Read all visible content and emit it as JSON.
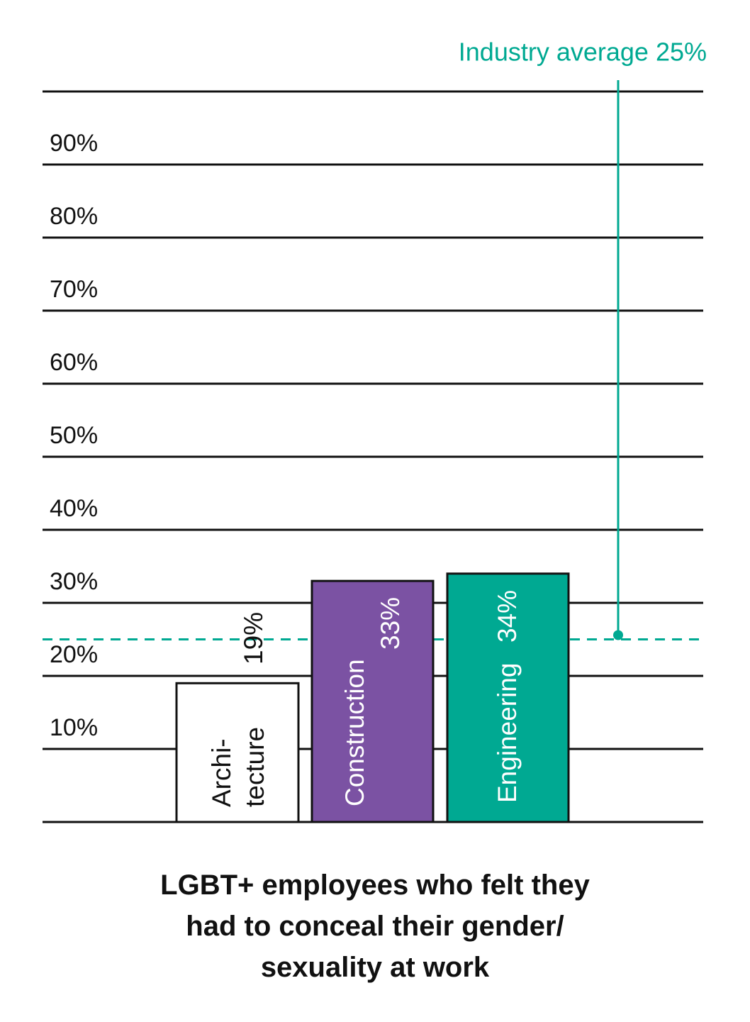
{
  "chart_data": {
    "type": "bar",
    "title": "LGBT+ employees who felt they\nhad to conceal their gender/\nsexuality at work",
    "categories": [
      "Archi-\ntecture",
      "Construction",
      "Engineering"
    ],
    "values": [
      19,
      33,
      34
    ],
    "value_labels": [
      "19%",
      "33%",
      "34%"
    ],
    "colors": [
      "#ffffff",
      "#7b52a3",
      "#00a992"
    ],
    "ylim": [
      0,
      100
    ],
    "yticks": [
      {
        "value": 10,
        "label": "10%"
      },
      {
        "value": 20,
        "label": "20%"
      },
      {
        "value": 30,
        "label": "30%"
      },
      {
        "value": 40,
        "label": "40%"
      },
      {
        "value": 50,
        "label": "50%"
      },
      {
        "value": 60,
        "label": "60%"
      },
      {
        "value": 70,
        "label": "70%"
      },
      {
        "value": 80,
        "label": "80%"
      },
      {
        "value": 90,
        "label": "90%"
      }
    ],
    "grid": true,
    "reference": {
      "value": 25,
      "label": "Industry average 25%",
      "color": "#00a992"
    }
  }
}
